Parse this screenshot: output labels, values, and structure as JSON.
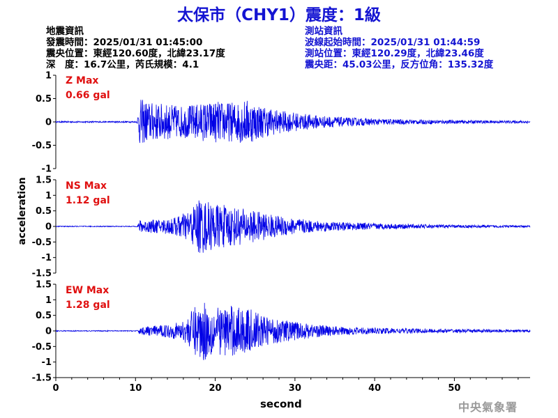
{
  "title": "太保市（CHY1）震度：1級",
  "quake_info": {
    "heading": "地震資訊",
    "origin_time": "發震時間：2025/01/31 01:45:00",
    "epicenter": "震央位置：東經120.60度，北緯23.17度",
    "depth_magnitude": "深　度：16.7公里，芮氏規模：4.1"
  },
  "station_info": {
    "heading": "測站資訊",
    "wave_start": "波線起始時間：2025/01/31 01:44:59",
    "station_location": "測站位置：東經120.29度，北緯23.46度",
    "distance_azimuth": "震央距：45.03公里，反方位角：135.32度"
  },
  "agency": "中央氣象署",
  "colors": {
    "title": "#1414d2",
    "trace": "#0000e6",
    "max_label": "#e01010",
    "axis": "#000000"
  },
  "chart_data": {
    "type": "line",
    "xlabel": "second",
    "ylabel": "acceleration",
    "xlim": [
      0,
      59.5
    ],
    "x_ticks": [
      "0",
      "10",
      "20",
      "30",
      "40",
      "50"
    ],
    "panels": [
      {
        "name": "Z Max",
        "max_value": "0.66 gal",
        "ylim": [
          -1,
          1
        ],
        "y_ticks": [
          "1",
          "0.5",
          "0",
          "-0.5",
          "-1"
        ],
        "envelope": [
          [
            0,
            0.015
          ],
          [
            10.2,
            0.015
          ],
          [
            10.5,
            0.5
          ],
          [
            12,
            0.42
          ],
          [
            14,
            0.38
          ],
          [
            16,
            0.34
          ],
          [
            18,
            0.4
          ],
          [
            20,
            0.45
          ],
          [
            22,
            0.42
          ],
          [
            24,
            0.48
          ],
          [
            26,
            0.34
          ],
          [
            28,
            0.25
          ],
          [
            30,
            0.2
          ],
          [
            33,
            0.14
          ],
          [
            36,
            0.1
          ],
          [
            40,
            0.07
          ],
          [
            45,
            0.05
          ],
          [
            50,
            0.04
          ],
          [
            55,
            0.03
          ],
          [
            59.5,
            0.03
          ]
        ]
      },
      {
        "name": "NS Max",
        "max_value": "1.12 gal",
        "ylim": [
          -1.5,
          1.5
        ],
        "y_ticks": [
          "1.5",
          "1",
          "0.5",
          "0",
          "-0.5",
          "-1",
          "-1.5"
        ],
        "envelope": [
          [
            0,
            0.015
          ],
          [
            10.2,
            0.015
          ],
          [
            10.5,
            0.2
          ],
          [
            13,
            0.22
          ],
          [
            15,
            0.3
          ],
          [
            17,
            0.55
          ],
          [
            18,
            0.95
          ],
          [
            19,
            0.8
          ],
          [
            21,
            0.7
          ],
          [
            23,
            0.6
          ],
          [
            25,
            0.5
          ],
          [
            27,
            0.38
          ],
          [
            29,
            0.3
          ],
          [
            32,
            0.2
          ],
          [
            35,
            0.14
          ],
          [
            40,
            0.1
          ],
          [
            45,
            0.07
          ],
          [
            50,
            0.05
          ],
          [
            55,
            0.04
          ],
          [
            59.5,
            0.03
          ]
        ]
      },
      {
        "name": "EW Max",
        "max_value": "1.28 gal",
        "ylim": [
          -1.5,
          1.5
        ],
        "y_ticks": [
          "1.5",
          "1",
          "0.5",
          "0",
          "-0.5",
          "-1",
          "-1.5"
        ],
        "envelope": [
          [
            0,
            0.015
          ],
          [
            10.2,
            0.015
          ],
          [
            10.5,
            0.12
          ],
          [
            13,
            0.18
          ],
          [
            16,
            0.3
          ],
          [
            17.5,
            0.8
          ],
          [
            18.5,
            1.0
          ],
          [
            20,
            0.75
          ],
          [
            22,
            0.82
          ],
          [
            24,
            0.75
          ],
          [
            26,
            0.5
          ],
          [
            28,
            0.38
          ],
          [
            30,
            0.3
          ],
          [
            33,
            0.2
          ],
          [
            36,
            0.13
          ],
          [
            40,
            0.1
          ],
          [
            45,
            0.08
          ],
          [
            50,
            0.06
          ],
          [
            55,
            0.05
          ],
          [
            59.5,
            0.04
          ]
        ]
      }
    ]
  }
}
